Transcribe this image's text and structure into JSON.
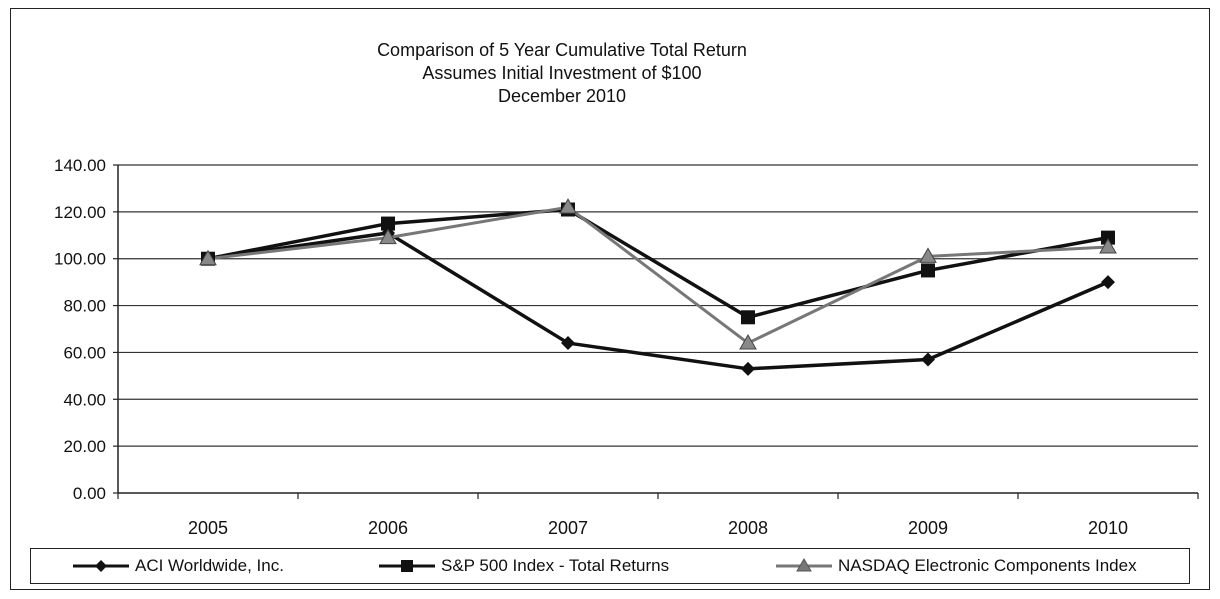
{
  "chart_data": {
    "type": "line",
    "title": "Comparison of 5 Year Cumulative Total Return",
    "subtitle": "Assumes Initial Investment of $100",
    "subtitle2": "December 2010",
    "categories": [
      "2005",
      "2006",
      "2007",
      "2008",
      "2009",
      "2010"
    ],
    "y_ticks": [
      "0.00",
      "20.00",
      "40.00",
      "60.00",
      "80.00",
      "100.00",
      "120.00",
      "140.00"
    ],
    "ylim": [
      0,
      140
    ],
    "grid": true,
    "legend_position": "bottom",
    "series": [
      {
        "name": "ACI Worldwide, Inc.",
        "values": [
          100,
          111,
          64,
          53,
          57,
          90
        ],
        "marker": "diamond",
        "color": "#111111"
      },
      {
        "name": "S&P 500 Index - Total Returns",
        "values": [
          100,
          115,
          121,
          75,
          95,
          109
        ],
        "marker": "square",
        "color": "#111111"
      },
      {
        "name": "NASDAQ Electronic Components Index",
        "values": [
          100,
          109,
          122,
          64,
          101,
          105
        ],
        "marker": "triangle",
        "color": "#777777"
      }
    ]
  }
}
